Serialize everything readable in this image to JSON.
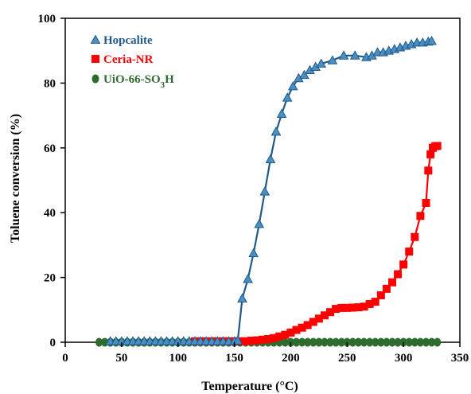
{
  "chart_data": {
    "type": "line",
    "title": "",
    "xlabel": "Temperature (°C)",
    "ylabel": "Toluene conversion (%)",
    "xlim": [
      0,
      350
    ],
    "ylim": [
      0,
      100
    ],
    "xticks": [
      0,
      50,
      100,
      150,
      200,
      250,
      300,
      350
    ],
    "yticks": [
      0,
      20,
      40,
      60,
      80,
      100
    ],
    "grid": false,
    "legend": "top-left",
    "series": [
      {
        "name": "Hopcalite",
        "color": "#1f5a8a",
        "marker": "triangle",
        "x": [
          40,
          45,
          50,
          55,
          60,
          65,
          70,
          75,
          80,
          85,
          90,
          95,
          100,
          105,
          110,
          115,
          120,
          125,
          130,
          135,
          140,
          145,
          150,
          153,
          157,
          162,
          167,
          172,
          177,
          182,
          187,
          192,
          197,
          202,
          207,
          212,
          217,
          222,
          227,
          237,
          247,
          257,
          267,
          272,
          277,
          282,
          287,
          292,
          297,
          302,
          307,
          312,
          317,
          322,
          325
        ],
        "y": [
          0.3,
          0.3,
          0.3,
          0.3,
          0.3,
          0.3,
          0.3,
          0.3,
          0.3,
          0.3,
          0.3,
          0.3,
          0.3,
          0.3,
          0.3,
          0.3,
          0.3,
          0.3,
          0.3,
          0.3,
          0.3,
          0.3,
          0.3,
          0.5,
          13.5,
          19.5,
          27.5,
          36.5,
          46.5,
          56.5,
          65,
          70.5,
          75.5,
          79,
          81.5,
          82.5,
          84,
          85,
          86,
          87,
          88.5,
          88.5,
          88,
          88.5,
          89.5,
          89.5,
          90,
          90.5,
          91,
          91.5,
          92,
          92.5,
          92.5,
          92.8,
          93
        ]
      },
      {
        "name": "Ceria-NR",
        "color": "#ff0000",
        "marker": "square",
        "x": [
          115,
          120,
          125,
          130,
          135,
          140,
          145,
          150,
          155,
          160,
          165,
          170,
          175,
          180,
          185,
          190,
          195,
          200,
          205,
          210,
          215,
          220,
          225,
          230,
          235,
          240,
          245,
          250,
          255,
          260,
          265,
          270,
          275,
          280,
          285,
          290,
          295,
          300,
          305,
          310,
          315,
          320,
          322,
          324,
          326,
          328,
          330
        ],
        "y": [
          0.3,
          0.3,
          0.3,
          0.3,
          0.3,
          0.3,
          0.3,
          0.3,
          0.3,
          0.3,
          0.5,
          0.6,
          0.8,
          1,
          1.3,
          1.8,
          2.3,
          3,
          3.8,
          4.5,
          5.3,
          6.3,
          7.3,
          8.3,
          9.3,
          10.3,
          10.6,
          10.6,
          10.7,
          10.8,
          11,
          11.8,
          12.5,
          14.5,
          16.5,
          18.5,
          21,
          24,
          28,
          32.5,
          39,
          43,
          53,
          58,
          60,
          60.5,
          60.6
        ]
      },
      {
        "name": "UiO-66-SO3H",
        "color": "#2e6b2e",
        "marker": "circle",
        "x": [
          30,
          35,
          40,
          45,
          50,
          55,
          60,
          65,
          70,
          75,
          80,
          85,
          90,
          95,
          100,
          105,
          110,
          115,
          120,
          125,
          130,
          135,
          140,
          145,
          150,
          155,
          160,
          165,
          170,
          175,
          180,
          185,
          190,
          195,
          200,
          205,
          210,
          215,
          220,
          225,
          230,
          235,
          240,
          245,
          250,
          255,
          260,
          265,
          270,
          275,
          280,
          285,
          290,
          295,
          300,
          305,
          310,
          315,
          320,
          325,
          330
        ],
        "y": [
          0,
          0,
          0,
          0,
          0,
          0,
          0,
          0,
          0,
          0,
          0,
          0,
          0,
          0,
          0,
          0,
          0,
          0,
          0,
          0,
          0,
          0,
          0,
          0,
          0,
          0,
          0,
          0,
          0,
          0,
          0,
          0,
          0,
          0,
          0,
          0,
          0,
          0,
          0,
          0,
          0,
          0,
          0,
          0,
          0,
          0,
          0,
          0,
          0,
          0,
          0,
          0,
          0,
          0,
          0,
          0,
          0,
          0,
          0,
          0,
          0
        ]
      }
    ]
  }
}
